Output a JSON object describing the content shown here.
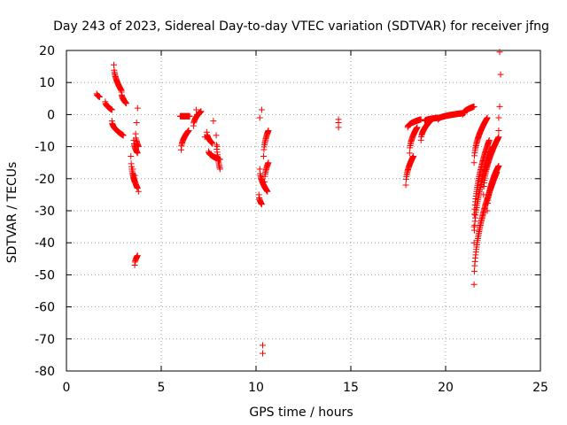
{
  "chart_data": {
    "type": "scatter",
    "title": "Day 243 of 2023, Sidereal Day-to-day VTEC variation (SDTVAR) for receiver jfng",
    "xlabel": "GPS time / hours",
    "ylabel": "SDTVAR / TECUs",
    "xlim": [
      0,
      25
    ],
    "ylim": [
      -80,
      20
    ],
    "xticks": [
      0,
      5,
      10,
      15,
      20,
      25
    ],
    "xtick_labels": [
      "0",
      "5",
      "10",
      "15",
      "20",
      "25"
    ],
    "yticks": [
      20,
      10,
      0,
      -10,
      -20,
      -30,
      -40,
      -50,
      -60,
      -70,
      -80
    ],
    "ytick_labels": [
      "20",
      "10",
      "0",
      "-10",
      "-20",
      "-30",
      "-40",
      "-50",
      "-60",
      "-70",
      "-80"
    ],
    "grid": true,
    "marker": "+",
    "color": "#ff0000",
    "series": [
      {
        "name": "SDTVAR",
        "segments": [
          [
            1.6,
            1.75,
            6.5,
            5.5
          ],
          [
            2.05,
            2.4,
            4.0,
            1.5
          ],
          [
            2.4,
            3.0,
            -2.0,
            -6.5
          ],
          [
            2.5,
            2.9,
            15.5,
            7.5
          ],
          [
            2.9,
            3.15,
            7.0,
            3.5
          ],
          [
            3.4,
            3.6,
            -13.0,
            -21.0
          ],
          [
            3.55,
            3.75,
            -8.0,
            -12.0
          ],
          [
            3.5,
            3.75,
            -17.0,
            -23.0
          ],
          [
            3.65,
            3.8,
            -6.0,
            -10.0
          ],
          [
            3.6,
            3.75,
            -47.0,
            -44.0
          ],
          [
            6.05,
            6.45,
            -11.0,
            -5.0
          ],
          [
            6.0,
            6.5,
            -0.5,
            -0.5
          ],
          [
            6.7,
            7.1,
            -3.5,
            1.0
          ],
          [
            7.4,
            7.7,
            -5.5,
            -9.0
          ],
          [
            7.5,
            8.1,
            -11.5,
            -14.0
          ],
          [
            7.9,
            8.1,
            -6.5,
            -17.0
          ],
          [
            10.2,
            10.6,
            -17.0,
            -24.0
          ],
          [
            10.15,
            10.3,
            -25.0,
            -28.0
          ],
          [
            10.4,
            10.65,
            -13.0,
            -5.0
          ],
          [
            10.45,
            10.65,
            -21.0,
            -15.0
          ],
          [
            17.9,
            18.3,
            -22.0,
            -13.0
          ],
          [
            18.1,
            18.5,
            -12.0,
            -4.0
          ],
          [
            18.0,
            18.7,
            -4.0,
            -1.5
          ],
          [
            18.7,
            19.2,
            -8.0,
            -2.0
          ],
          [
            18.9,
            19.6,
            -2.0,
            -1.0
          ],
          [
            19.6,
            21.0,
            -1.5,
            0.5
          ],
          [
            20.9,
            21.5,
            0.0,
            2.5
          ],
          [
            21.5,
            22.2,
            -15.0,
            -1.0
          ],
          [
            21.5,
            22.3,
            -35.0,
            -8.0
          ],
          [
            21.5,
            22.5,
            -40.0,
            -10.0
          ],
          [
            21.5,
            22.7,
            -53.0,
            -18.0
          ],
          [
            22.0,
            22.8,
            -25.0,
            -7.0
          ],
          [
            22.2,
            22.8,
            -30.0,
            -16.0
          ]
        ],
        "extra_points": [
          [
            3.0,
            5.0
          ],
          [
            3.75,
            2.0
          ],
          [
            3.7,
            -2.5
          ],
          [
            3.8,
            -24.0
          ],
          [
            3.6,
            -19.0
          ],
          [
            6.9,
            0.0
          ],
          [
            6.85,
            1.5
          ],
          [
            7.75,
            -2.0
          ],
          [
            7.3,
            -7.0
          ],
          [
            7.95,
            -10.0
          ],
          [
            10.35,
            -72.0
          ],
          [
            10.35,
            -74.5
          ],
          [
            10.2,
            -1.0
          ],
          [
            10.3,
            1.5
          ],
          [
            14.35,
            -1.5
          ],
          [
            14.35,
            -2.5
          ],
          [
            14.35,
            -4.0
          ],
          [
            22.85,
            19.5
          ],
          [
            22.9,
            12.5
          ],
          [
            22.85,
            2.5
          ],
          [
            22.8,
            -1.0
          ],
          [
            22.8,
            -5.0
          ]
        ]
      }
    ]
  }
}
